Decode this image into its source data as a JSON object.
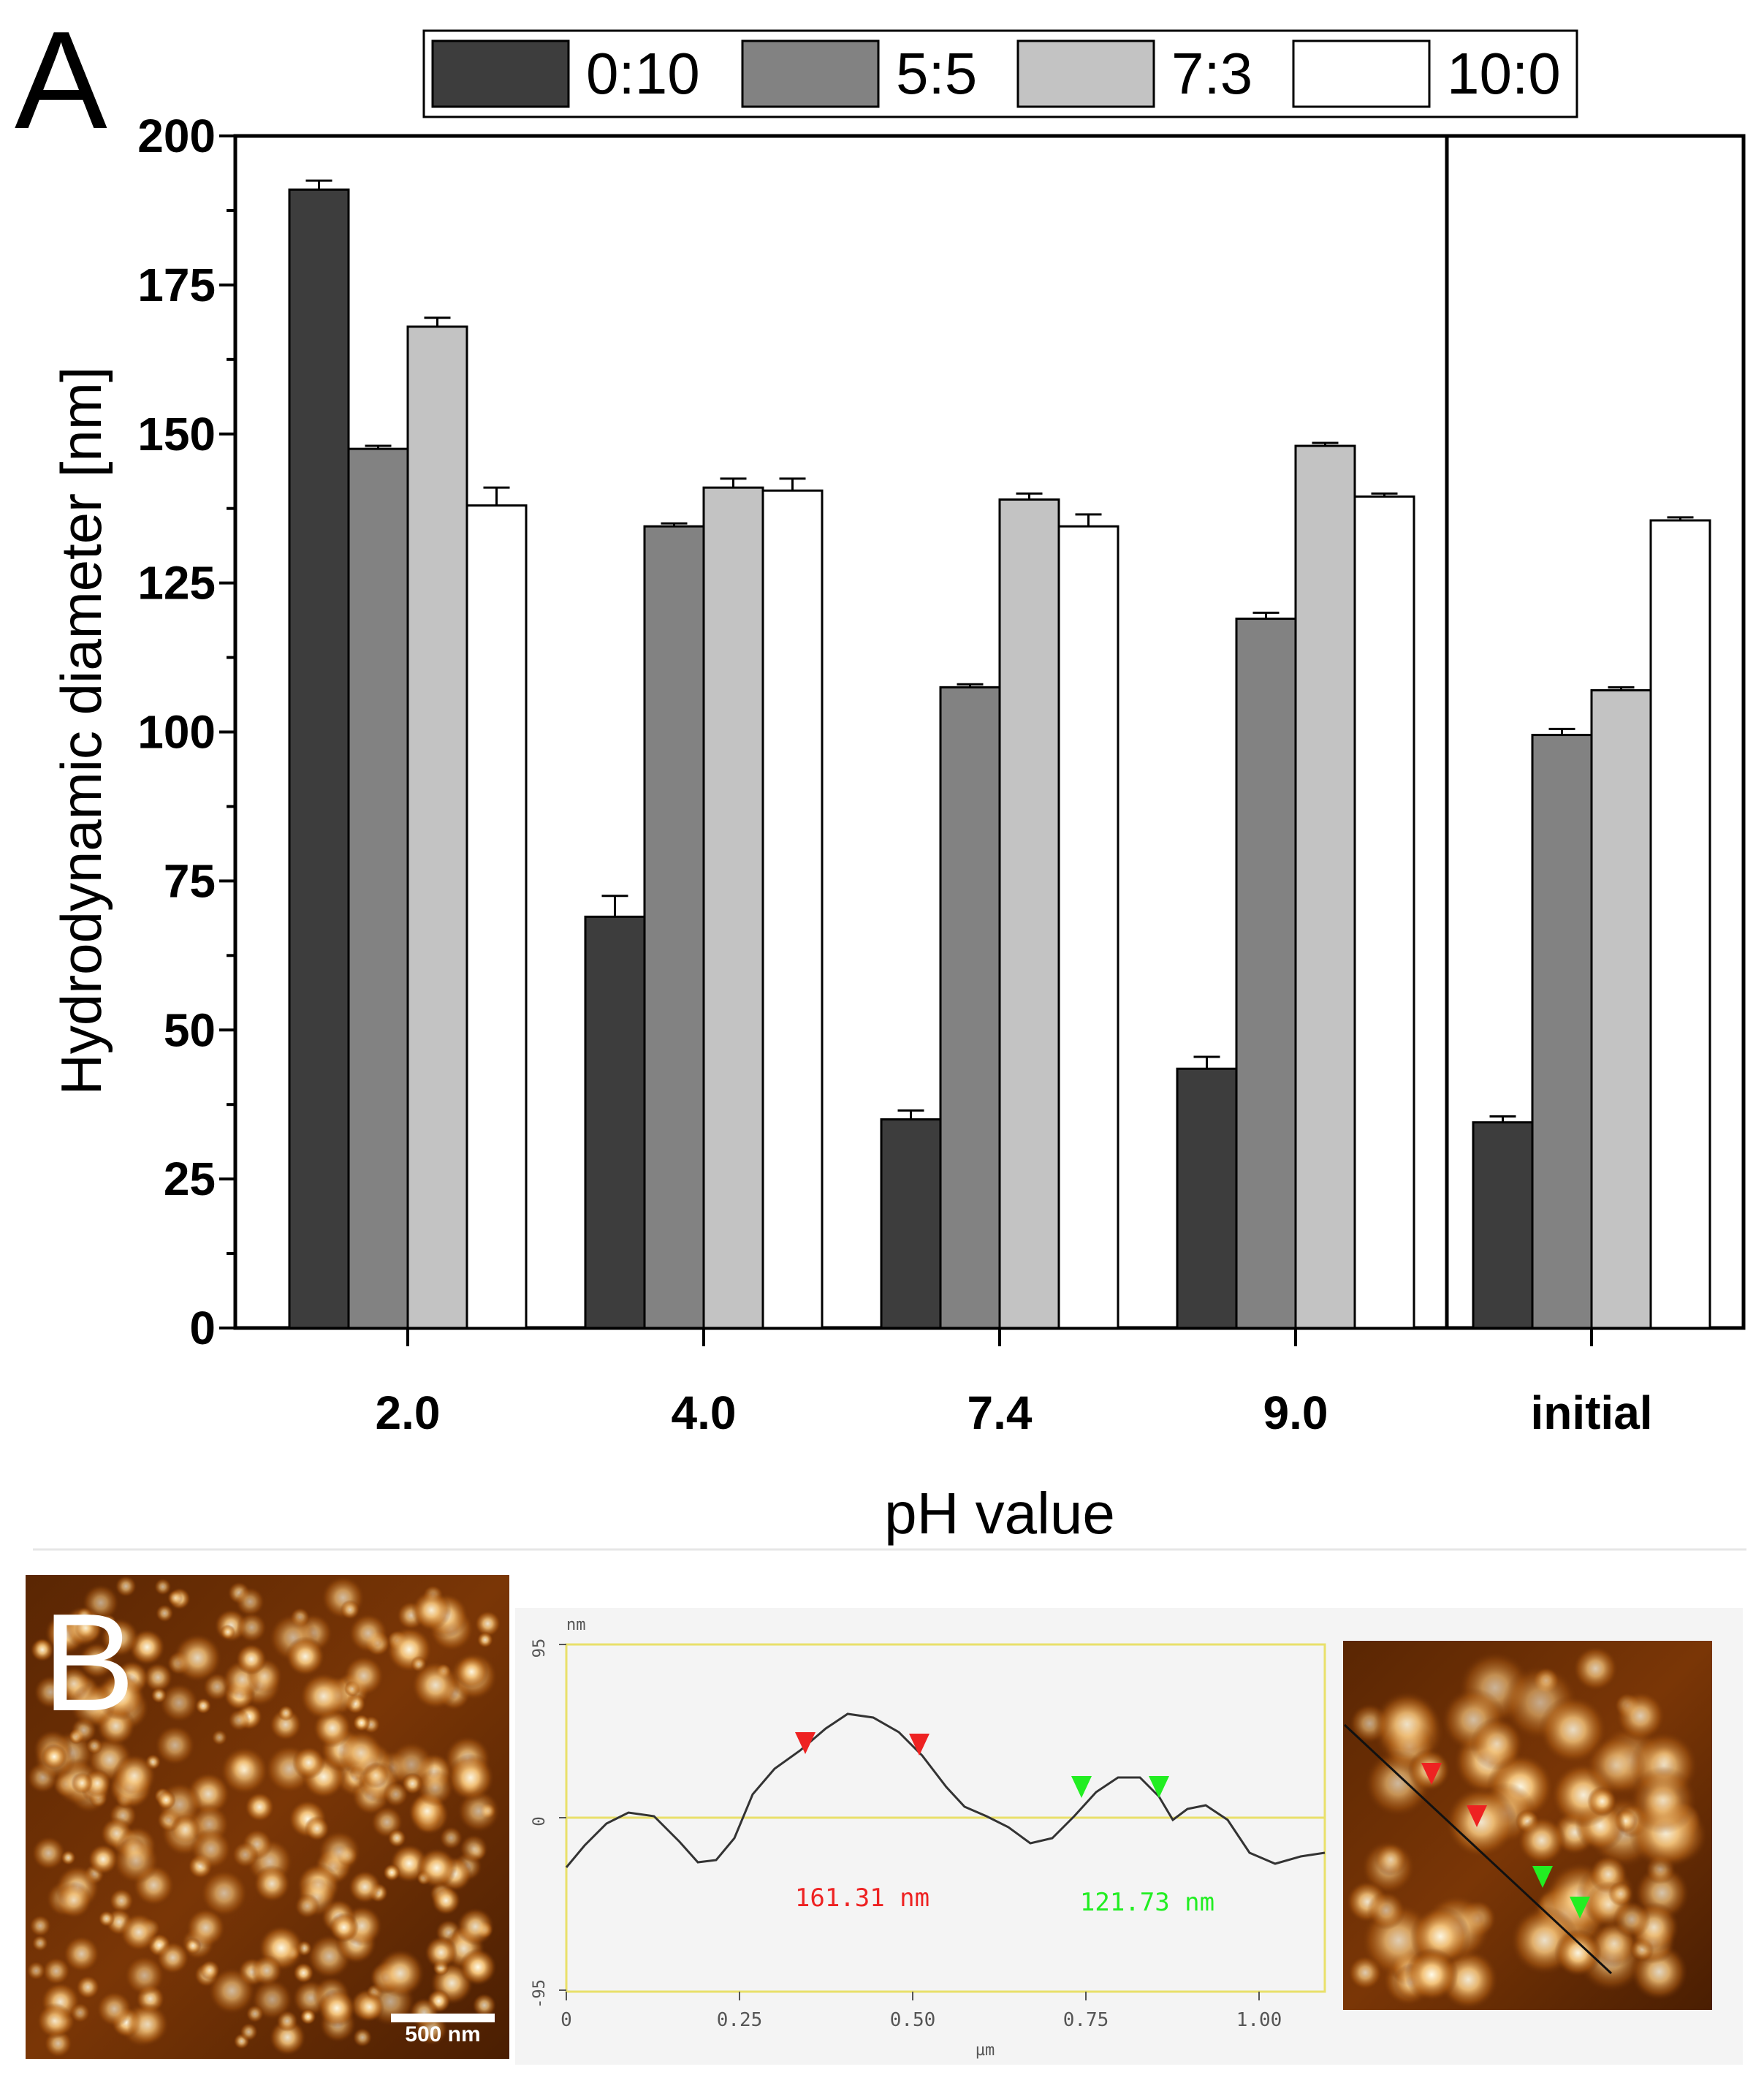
{
  "panel_a": {
    "label": "A",
    "chart_data": {
      "type": "bar",
      "categories": [
        "2.0",
        "4.0",
        "7.4",
        "9.0",
        "initial"
      ],
      "series": [
        {
          "name": "0:10",
          "color": "#3d3d3d",
          "values": [
            191,
            69,
            35,
            43.5,
            34.5
          ],
          "errors": [
            1.5,
            3.5,
            1.5,
            2,
            1
          ]
        },
        {
          "name": "5:5",
          "color": "#828282",
          "values": [
            147.5,
            134.5,
            107.5,
            119,
            99.5
          ],
          "errors": [
            0.5,
            0.5,
            0.5,
            1,
            1
          ]
        },
        {
          "name": "7:3",
          "color": "#c3c3c3",
          "values": [
            168,
            141,
            139,
            148,
            107
          ],
          "errors": [
            1.5,
            1.5,
            1,
            0.5,
            0.5
          ]
        },
        {
          "name": "10:0",
          "color": "#ffffff",
          "values": [
            138,
            140.5,
            134.5,
            139.5,
            135.5
          ],
          "errors": [
            3,
            2,
            2,
            0.5,
            0.5
          ]
        }
      ],
      "ylim": [
        0,
        200
      ],
      "yticks": [
        "0",
        "25",
        "50",
        "75",
        "100",
        "125",
        "150",
        "175",
        "200"
      ],
      "xlabel": "pH value",
      "ylabel": "Hydrodynamic diameter [nm]",
      "legend_position": "top"
    }
  },
  "panel_b": {
    "label": "B",
    "scale_bar": "500 nm",
    "profile": {
      "y_unit": "nm",
      "x_unit": "µm",
      "y_ticks": [
        "95",
        "0",
        "-95"
      ],
      "x_ticks": [
        "0",
        "0.25",
        "0.50",
        "0.75",
        "1.00"
      ],
      "measurement_red": "161.31 nm",
      "measurement_green": "121.73 nm",
      "red_color": "#ee2222",
      "green_color": "#22ee22"
    }
  }
}
